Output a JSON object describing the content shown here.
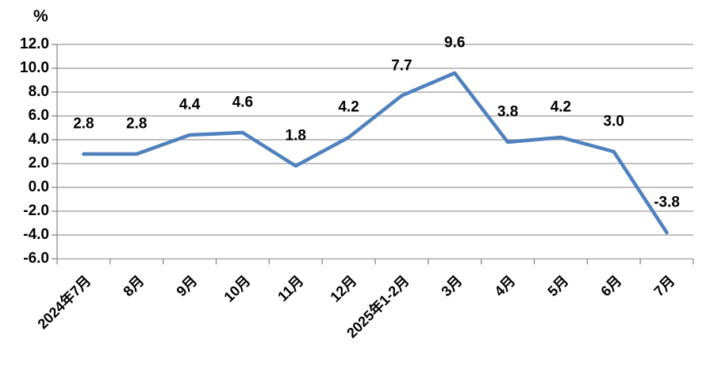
{
  "chart_data": {
    "type": "line",
    "title": "",
    "unit_label": "%",
    "categories": [
      "2024年7月",
      "8月",
      "9月",
      "10月",
      "11月",
      "12月",
      "2025年1-2月",
      "3月",
      "4月",
      "5月",
      "6月",
      "7月"
    ],
    "values": [
      2.8,
      2.8,
      4.4,
      4.6,
      1.8,
      4.2,
      7.7,
      9.6,
      3.8,
      4.2,
      3.0,
      -3.8
    ],
    "data_labels": [
      "2.8",
      "2.8",
      "4.4",
      "4.6",
      "1.8",
      "4.2",
      "7.7",
      "9.6",
      "3.8",
      "4.2",
      "3.0",
      "-3.8"
    ],
    "xlabel": "",
    "ylabel": "%",
    "ylim": [
      -6.0,
      12.0
    ],
    "ytick_step": 2.0,
    "ytick_labels": [
      "12.0",
      "10.0",
      "8.0",
      "6.0",
      "4.0",
      "2.0",
      "0.0",
      "-2.0",
      "-4.0",
      "-6.0"
    ],
    "grid": true,
    "legend_position": "none",
    "colors": {
      "line": "#4F81BD",
      "gridline": "#9b9b9b",
      "axis": "#8a8a8a",
      "text": "#000000",
      "background": "#ffffff"
    }
  }
}
